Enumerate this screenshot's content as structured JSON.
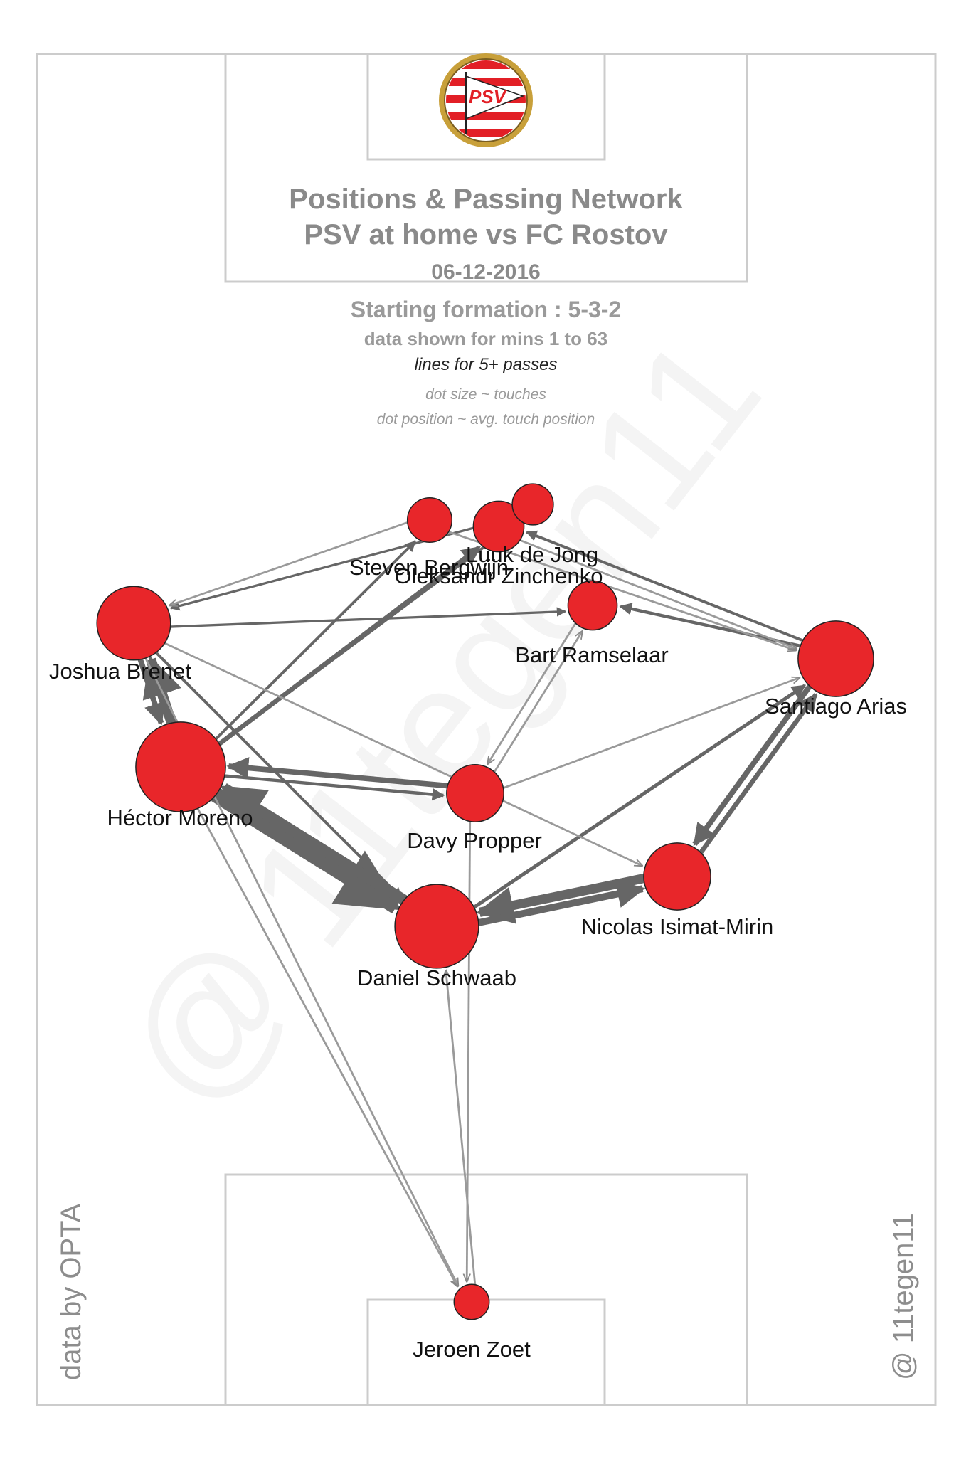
{
  "title": {
    "line1": "Positions & Passing Network",
    "line2": "PSV at home vs FC Rostov",
    "date": "06-12-2016",
    "formation": "Starting formation : 5-3-2",
    "minutes": "data shown for mins 1 to 63",
    "threshold": "lines for 5+ passes",
    "legend_size": "dot size ~ touches",
    "legend_position": "dot position ~ avg. touch position"
  },
  "logo": {
    "text": "PSV",
    "colors": {
      "red": "#e21f26",
      "gold": "#c8a03a",
      "white": "#ffffff"
    }
  },
  "credits": {
    "source": "data by OPTA",
    "author": "@ 11tegen11"
  },
  "colors": {
    "dot_fill": "#e8262a",
    "dot_stroke": "#222222",
    "pass_line": "#666666",
    "pitch_line": "#cccccc"
  },
  "players": [
    {
      "name": "Luuk de Jong",
      "touches": 30
    },
    {
      "name": "Steven Bergwijn",
      "touches": 22
    },
    {
      "name": "Oleksandr Zinchenko",
      "touches": 18
    },
    {
      "name": "Bart Ramselaar",
      "touches": 28
    },
    {
      "name": "Joshua Brenet",
      "touches": 72
    },
    {
      "name": "Santiago Arias",
      "touches": 76
    },
    {
      "name": "Héctor Moreno",
      "touches": 112
    },
    {
      "name": "Davy Propper",
      "touches": 40
    },
    {
      "name": "Nicolas Isimat-Mirin",
      "touches": 58
    },
    {
      "name": "Daniel Schwaab",
      "touches": 96
    },
    {
      "name": "Jeroen Zoet",
      "touches": 12
    }
  ],
  "passes": [
    {
      "from": "Héctor Moreno",
      "to": "Daniel Schwaab",
      "count": 40
    },
    {
      "from": "Daniel Schwaab",
      "to": "Héctor Moreno",
      "count": 28
    },
    {
      "from": "Héctor Moreno",
      "to": "Joshua Brenet",
      "count": 26
    },
    {
      "from": "Nicolas Isimat-Mirin",
      "to": "Daniel Schwaab",
      "count": 24
    },
    {
      "from": "Daniel Schwaab",
      "to": "Nicolas Isimat-Mirin",
      "count": 18
    },
    {
      "from": "Santiago Arias",
      "to": "Nicolas Isimat-Mirin",
      "count": 14
    },
    {
      "from": "Nicolas Isimat-Mirin",
      "to": "Santiago Arias",
      "count": 12
    },
    {
      "from": "Joshua Brenet",
      "to": "Héctor Moreno",
      "count": 14
    },
    {
      "from": "Héctor Moreno",
      "to": "Luuk de Jong",
      "count": 12
    },
    {
      "from": "Davy Propper",
      "to": "Héctor Moreno",
      "count": 14
    },
    {
      "from": "Daniel Schwaab",
      "to": "Santiago Arias",
      "count": 9
    },
    {
      "from": "Santiago Arias",
      "to": "Bart Ramselaar",
      "count": 8
    },
    {
      "from": "Santiago Arias",
      "to": "Luuk de Jong",
      "count": 7
    },
    {
      "from": "Héctor Moreno",
      "to": "Davy Propper",
      "count": 8
    },
    {
      "from": "Héctor Moreno",
      "to": "Oleksandr Zinchenko",
      "count": 7
    },
    {
      "from": "Héctor Moreno",
      "to": "Steven Bergwijn",
      "count": 7
    },
    {
      "from": "Joshua Brenet",
      "to": "Daniel Schwaab",
      "count": 7
    },
    {
      "from": "Davy Propper",
      "to": "Bart Ramselaar",
      "count": 5
    },
    {
      "from": "Joshua Brenet",
      "to": "Bart Ramselaar",
      "count": 6
    },
    {
      "from": "Luuk de Jong",
      "to": "Joshua Brenet",
      "count": 6
    },
    {
      "from": "Steven Bergwijn",
      "to": "Joshua Brenet",
      "count": 5
    },
    {
      "from": "Davy Propper",
      "to": "Santiago Arias",
      "count": 5
    },
    {
      "from": "Steven Bergwijn",
      "to": "Santiago Arias",
      "count": 5
    },
    {
      "from": "Bart Ramselaar",
      "to": "Davy Propper",
      "count": 5
    },
    {
      "from": "Luuk de Jong",
      "to": "Santiago Arias",
      "count": 5
    },
    {
      "from": "Joshua Brenet",
      "to": "Nicolas Isimat-Mirin",
      "count": 5
    },
    {
      "from": "Héctor Moreno",
      "to": "Jeroen Zoet",
      "count": 5
    },
    {
      "from": "Davy Propper",
      "to": "Jeroen Zoet",
      "count": 5
    },
    {
      "from": "Jeroen Zoet",
      "to": "Daniel Schwaab",
      "count": 5
    },
    {
      "from": "Joshua Brenet",
      "to": "Jeroen Zoet",
      "count": 5
    }
  ]
}
